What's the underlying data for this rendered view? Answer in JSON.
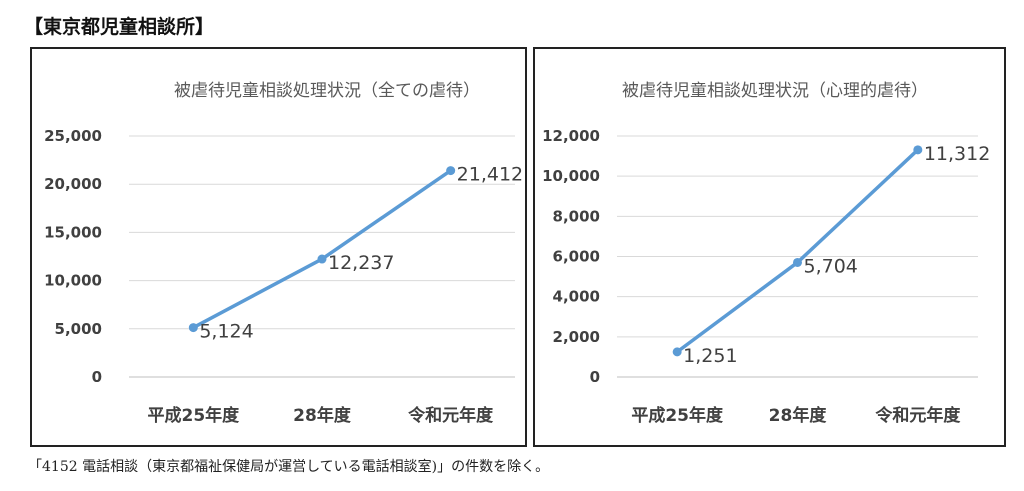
{
  "heading": "【東京都児童相談所】",
  "footnote": "「4152 電話相談（東京都福祉保健局が運営している電話相談室)」の件数を除く。",
  "chart_data": [
    {
      "type": "line",
      "title": "被虐待児童相談処理状況（全ての虐待）",
      "categories": [
        "平成25年度",
        "28年度",
        "令和元年度"
      ],
      "series": [
        {
          "values": [
            5124,
            12237,
            21412
          ]
        }
      ],
      "data_labels": [
        "5,124",
        "12,237",
        "21,412"
      ],
      "ylim": [
        0,
        25000
      ],
      "yticks": [
        0,
        5000,
        10000,
        15000,
        20000,
        25000
      ],
      "ytick_labels": [
        "0",
        "5,000",
        "10,000",
        "15,000",
        "20,000",
        "25,000"
      ],
      "grid": true,
      "color": "#5b9bd5"
    },
    {
      "type": "line",
      "title": "被虐待児童相談処理状況（心理的虐待）",
      "categories": [
        "平成25年度",
        "28年度",
        "令和元年度"
      ],
      "series": [
        {
          "values": [
            1251,
            5704,
            11312
          ]
        }
      ],
      "data_labels": [
        "1,251",
        "5,704",
        "11,312"
      ],
      "ylim": [
        0,
        12000
      ],
      "yticks": [
        0,
        2000,
        4000,
        6000,
        8000,
        10000,
        12000
      ],
      "ytick_labels": [
        "0",
        "2,000",
        "4,000",
        "6,000",
        "8,000",
        "10,000",
        "12,000"
      ],
      "grid": true,
      "color": "#5b9bd5"
    }
  ]
}
